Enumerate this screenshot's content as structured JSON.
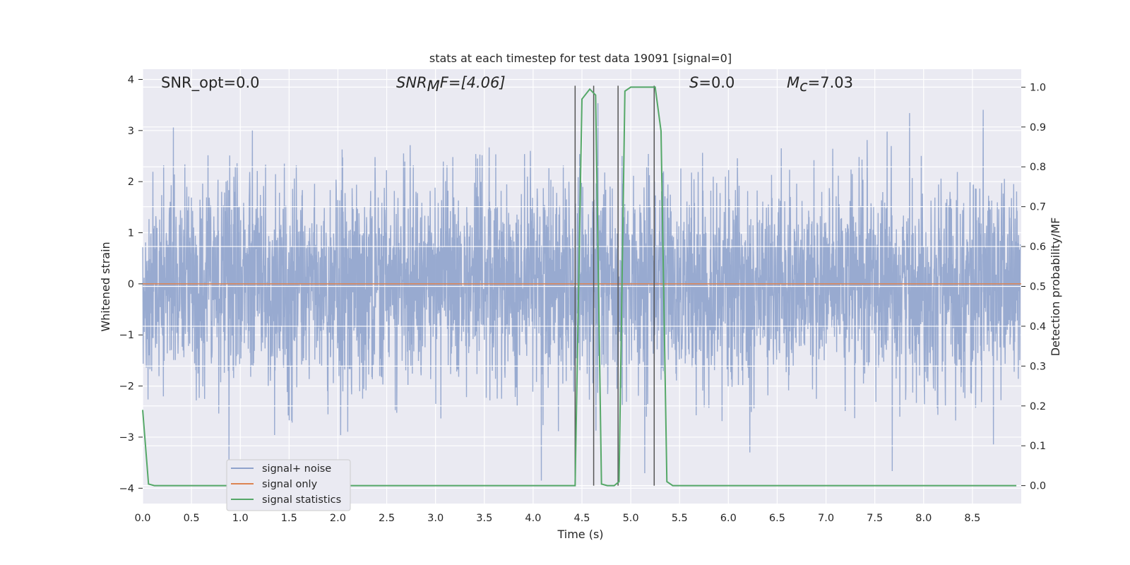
{
  "chart_data": {
    "type": "line",
    "title": "stats at each timestep for test data 19091 [signal=0]",
    "xlabel": "Time (s)",
    "ylabel_left": "Whitened strain",
    "ylabel_right": "Detection probability/MF",
    "xlim": [
      0.0,
      9.0
    ],
    "ylim_left": [
      -4.3,
      4.2
    ],
    "ylim_right": [
      -0.045,
      1.045
    ],
    "x_ticks": [
      "0.0",
      "0.5",
      "1.0",
      "1.5",
      "2.0",
      "2.5",
      "3.0",
      "3.5",
      "4.0",
      "4.5",
      "5.0",
      "5.5",
      "6.0",
      "6.5",
      "7.0",
      "7.5",
      "8.0",
      "8.5"
    ],
    "y_ticks_left": [
      "−4",
      "−3",
      "−2",
      "−1",
      "0",
      "1",
      "2",
      "3",
      "4"
    ],
    "y_ticks_right": [
      "0.0",
      "0.1",
      "0.2",
      "0.3",
      "0.4",
      "0.5",
      "0.6",
      "0.7",
      "0.8",
      "0.9",
      "1.0"
    ],
    "grid": true,
    "legend_placement": "lower-left",
    "annotations": {
      "snr_opt": "SNR_opt=0.0",
      "snr_mf_main": "SNR",
      "snr_mf_sub": "M",
      "snr_mf_rest": "F=[4.06]",
      "s_main": "S",
      "s_rest": "=0.0",
      "mc_main": "M",
      "mc_sub": "c",
      "mc_rest": "=7.03"
    },
    "series": [
      {
        "name": "signal+ noise",
        "color": "#8fa3cc",
        "description_envelope": {
          "typical_band": [
            -1.7,
            1.6
          ],
          "peak_max": 3.8,
          "peak_min": -4.0
        }
      },
      {
        "name": "signal only",
        "color": "#dd8452",
        "values_constant": 0.0
      },
      {
        "name": "signal statistics",
        "color": "#55a868",
        "x": [
          0.0,
          0.06,
          0.12,
          4.43,
          4.5,
          4.58,
          4.64,
          4.7,
          4.76,
          4.83,
          4.88,
          4.94,
          5.0,
          5.25,
          5.31,
          5.37,
          5.43,
          8.95
        ],
        "y": [
          0.19,
          0.004,
          0.0,
          0.0,
          0.97,
          0.995,
          0.98,
          0.004,
          0.0,
          0.0,
          0.01,
          0.99,
          1.0,
          1.0,
          0.89,
          0.01,
          0.0,
          0.0
        ]
      }
    ],
    "vertical_lines": {
      "color": "#555555",
      "x": [
        4.43,
        4.62,
        4.87,
        5.24
      ]
    }
  }
}
